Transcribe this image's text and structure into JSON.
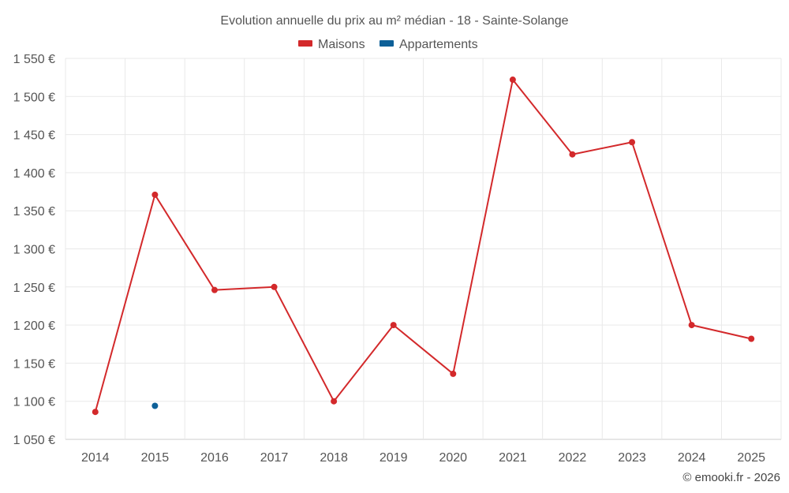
{
  "chart_data": {
    "type": "line",
    "title": "Evolution annuelle du prix au m² médian - 18 - Sainte-Solange",
    "categories": [
      "2014",
      "2015",
      "2016",
      "2017",
      "2018",
      "2019",
      "2020",
      "2021",
      "2022",
      "2023",
      "2024",
      "2025"
    ],
    "series": [
      {
        "name": "Maisons",
        "color": "#d3292b",
        "values": [
          1086,
          1371,
          1246,
          1250,
          1100,
          1200,
          1136,
          1522,
          1424,
          1440,
          1200,
          1182
        ]
      },
      {
        "name": "Appartements",
        "color": "#0d6098",
        "values": [
          null,
          1094,
          null,
          null,
          null,
          null,
          null,
          null,
          null,
          null,
          null,
          null
        ]
      }
    ],
    "ylim": [
      1050,
      1550
    ],
    "yticks": [
      1050,
      1100,
      1150,
      1200,
      1250,
      1300,
      1350,
      1400,
      1450,
      1500,
      1550
    ],
    "ytick_labels": [
      "1 050 €",
      "1 100 €",
      "1 150 €",
      "1 200 €",
      "1 250 €",
      "1 300 €",
      "1 350 €",
      "1 400 €",
      "1 450 €",
      "1 500 €",
      "1 550 €"
    ],
    "grid": true,
    "legend_position": "top-center",
    "credit": "© emooki.fr - 2026"
  }
}
